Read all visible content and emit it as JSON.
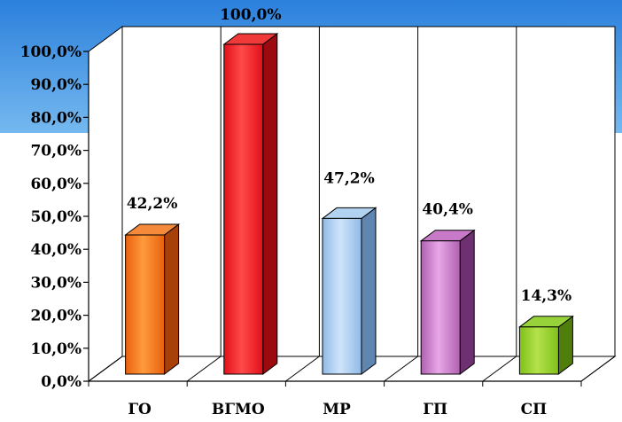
{
  "chart_data": {
    "type": "bar",
    "categories": [
      "ГО",
      "ВГМО",
      "МР",
      "ГП",
      "СП"
    ],
    "values": [
      42.2,
      100.0,
      47.2,
      40.4,
      14.3
    ],
    "data_labels": [
      "42,2%",
      "100,0%",
      "47,2%",
      "40,4%",
      "14,3%"
    ],
    "y_ticks": [
      {
        "value": 0,
        "label": "0,0%"
      },
      {
        "value": 10,
        "label": "10,0%"
      },
      {
        "value": 20,
        "label": "20,0%"
      },
      {
        "value": 30,
        "label": "30,0%"
      },
      {
        "value": 40,
        "label": "40,0%"
      },
      {
        "value": 50,
        "label": "50,0%"
      },
      {
        "value": 60,
        "label": "60,0%"
      },
      {
        "value": 70,
        "label": "70,0%"
      },
      {
        "value": 80,
        "label": "80,0%"
      },
      {
        "value": 90,
        "label": "90,0%"
      },
      {
        "value": 100,
        "label": "100,0%"
      }
    ],
    "ylim": [
      0,
      100
    ],
    "grid": false,
    "legend": "none",
    "three_d": true,
    "bar_colors": [
      {
        "front": "#e8610f",
        "light": "#ff9a3c",
        "side": "#a8400a",
        "top": "#f58a3a"
      },
      {
        "front": "#e0101a",
        "light": "#ff4a4a",
        "side": "#9c0a0f",
        "top": "#f03a3a"
      },
      {
        "front": "#8fbae6",
        "light": "#cfe4fb",
        "side": "#5f86b0",
        "top": "#b2d2f2"
      },
      {
        "front": "#b060b0",
        "light": "#e8a8e8",
        "side": "#6e3070",
        "top": "#c87ac8"
      },
      {
        "front": "#7fc01a",
        "light": "#b4e24a",
        "side": "#4f7e0c",
        "top": "#98d23a"
      }
    ],
    "background_top": "#3a8fe0",
    "wall_color": "#ffffff"
  }
}
